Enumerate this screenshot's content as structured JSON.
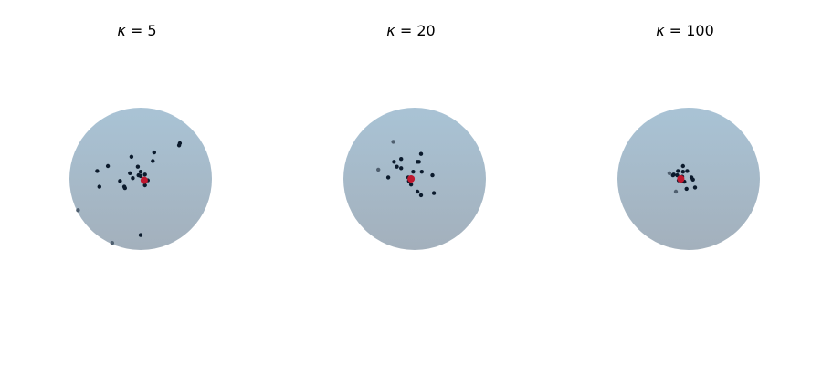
{
  "chart_data": [
    {
      "type": "scatter",
      "title_symbol": "κ",
      "title_value": "= 5",
      "mean_direction": [
        0.05,
        -0.02
      ],
      "points": [
        [
          -0.13,
          0.31
        ],
        [
          0.19,
          0.37
        ],
        [
          0.55,
          0.5
        ],
        [
          0.54,
          0.47
        ],
        [
          -0.03,
          0.05
        ],
        [
          -0.46,
          0.18
        ],
        [
          -0.61,
          0.11
        ],
        [
          -0.58,
          -0.11
        ],
        [
          -0.23,
          -0.11
        ],
        [
          -0.29,
          -0.03
        ],
        [
          -0.15,
          0.08
        ],
        [
          0.0,
          0.04
        ],
        [
          0.06,
          0.06
        ],
        [
          0.1,
          -0.02
        ],
        [
          0.06,
          -0.09
        ],
        [
          -0.22,
          -0.13
        ],
        [
          0.17,
          0.25
        ],
        [
          -0.04,
          0.17
        ],
        [
          0.0,
          -0.79
        ],
        [
          -0.4,
          -0.9
        ],
        [
          -0.88,
          -0.44
        ],
        [
          -0.11,
          0.01
        ],
        [
          0.0,
          0.1
        ]
      ],
      "faded_points": [
        [
          -0.88,
          -0.44
        ],
        [
          -0.4,
          -0.9
        ]
      ]
    },
    {
      "type": "scatter",
      "title_symbol": "κ",
      "title_value": "= 20",
      "mean_direction": [
        -0.05,
        0.0
      ],
      "points": [
        [
          -0.3,
          0.52
        ],
        [
          0.09,
          0.35
        ],
        [
          0.06,
          0.24
        ],
        [
          -0.19,
          0.28
        ],
        [
          -0.29,
          0.24
        ],
        [
          -0.25,
          0.17
        ],
        [
          -0.19,
          0.15
        ],
        [
          -0.02,
          0.1
        ],
        [
          0.1,
          0.1
        ],
        [
          0.25,
          0.05
        ],
        [
          0.04,
          0.24
        ],
        [
          -0.37,
          0.02
        ],
        [
          -0.05,
          0.02
        ],
        [
          -0.09,
          0.02
        ],
        [
          -0.08,
          -0.03
        ],
        [
          -0.05,
          -0.08
        ],
        [
          0.04,
          -0.18
        ],
        [
          0.09,
          -0.23
        ],
        [
          0.27,
          -0.2
        ],
        [
          -0.51,
          0.13
        ]
      ],
      "faded_points": [
        [
          -0.3,
          0.52
        ],
        [
          -0.51,
          0.13
        ]
      ]
    },
    {
      "type": "scatter",
      "title_symbol": "κ",
      "title_value": "= 100",
      "mean_direction": [
        -0.11,
        0.0
      ],
      "points": [
        [
          -0.08,
          0.18
        ],
        [
          -0.02,
          0.11
        ],
        [
          -0.08,
          0.1
        ],
        [
          -0.15,
          0.11
        ],
        [
          -0.16,
          0.05
        ],
        [
          -0.22,
          0.05
        ],
        [
          -0.21,
          0.06
        ],
        [
          -0.09,
          0.03
        ],
        [
          0.04,
          0.02
        ],
        [
          0.06,
          -0.01
        ],
        [
          -0.14,
          -0.02
        ],
        [
          -0.09,
          -0.03
        ],
        [
          -0.06,
          -0.04
        ],
        [
          0.09,
          -0.12
        ],
        [
          -0.03,
          -0.14
        ],
        [
          -0.18,
          -0.18
        ],
        [
          -0.27,
          0.08
        ]
      ],
      "faded_points": [
        [
          -0.27,
          0.08
        ],
        [
          -0.18,
          -0.18
        ]
      ]
    }
  ],
  "colors": {
    "sphere_top": "#a9c3d5",
    "sphere_bottom": "#a3b0bc",
    "point": "#0b1a2c",
    "point_faded": "#4f5f6f",
    "mean_marker": "#c0182f"
  }
}
